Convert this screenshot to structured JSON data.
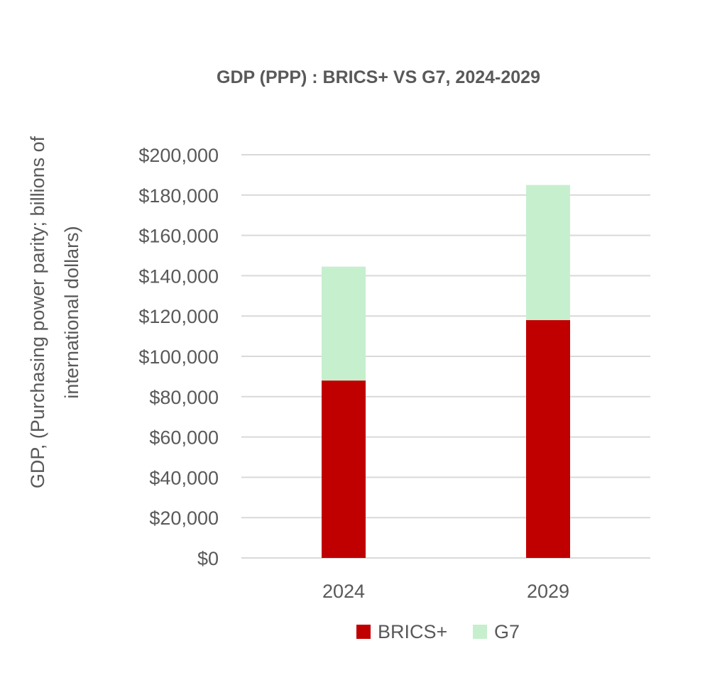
{
  "chart_data": {
    "type": "bar",
    "stacked": true,
    "title": "GDP (PPP) : BRICS+ VS G7, 2024-2029",
    "ylabel_lines": [
      "GDP, (Purchasing power parity; billions of",
      "international dollars)"
    ],
    "xlabel": "",
    "categories": [
      "2024",
      "2029"
    ],
    "series": [
      {
        "name": "BRICS+",
        "color": "#c00000",
        "values": [
          88000,
          118000
        ]
      },
      {
        "name": "G7",
        "color": "#c6efce",
        "values": [
          56500,
          67000
        ]
      }
    ],
    "ylim": [
      0,
      200000
    ],
    "yticks": [
      0,
      20000,
      40000,
      60000,
      80000,
      100000,
      120000,
      140000,
      160000,
      180000,
      200000
    ],
    "ytick_labels": [
      "$0",
      "$20,000",
      "$40,000",
      "$60,000",
      "$80,000",
      "$100,000",
      "$120,000",
      "$140,000",
      "$160,000",
      "$180,000",
      "$200,000"
    ],
    "grid": true,
    "legend": "bottom"
  }
}
